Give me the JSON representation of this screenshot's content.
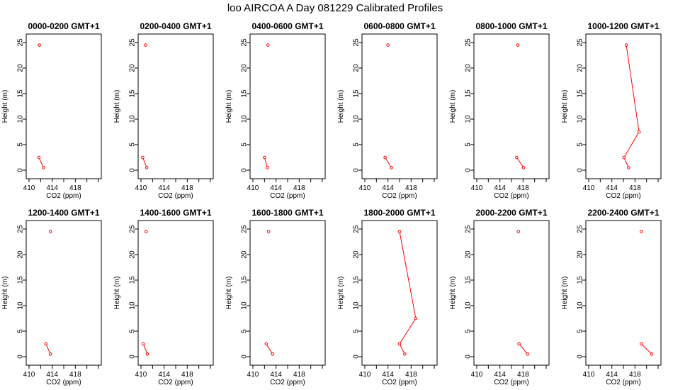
{
  "title": "loo AIRCOA A  Day 081229  Calibrated Profiles",
  "colors": {
    "series": "#ff0000",
    "frame": "#000000",
    "background": "#ffffff"
  },
  "chart_data": [
    {
      "type": "line",
      "title": "0000-0200 GMT+1",
      "xlabel": "CO2 (ppm)",
      "ylabel": "Height (m)",
      "xlim": [
        410,
        422
      ],
      "ylim": [
        0,
        25
      ],
      "xticks": [
        410,
        414,
        418
      ],
      "yticks": [
        0,
        5,
        10,
        15,
        20,
        25
      ],
      "segments": [
        [
          {
            "x": 411.8,
            "y": 24.5
          }
        ],
        [
          {
            "x": 411.7,
            "y": 2.5
          },
          {
            "x": 412.5,
            "y": 0.5
          }
        ]
      ]
    },
    {
      "type": "line",
      "title": "0200-0400 GMT+1",
      "xlabel": "CO2 (ppm)",
      "ylabel": "Height (m)",
      "xlim": [
        410,
        422
      ],
      "ylim": [
        0,
        25
      ],
      "xticks": [
        410,
        414,
        418
      ],
      "yticks": [
        0,
        5,
        10,
        15,
        20,
        25
      ],
      "segments": [
        [
          {
            "x": 410.8,
            "y": 24.5
          }
        ],
        [
          {
            "x": 410.3,
            "y": 2.5
          },
          {
            "x": 411.0,
            "y": 0.5
          }
        ]
      ]
    },
    {
      "type": "line",
      "title": "0400-0600 GMT+1",
      "xlabel": "CO2 (ppm)",
      "ylabel": "Height (m)",
      "xlim": [
        410,
        422
      ],
      "ylim": [
        0,
        25
      ],
      "xticks": [
        410,
        414,
        418
      ],
      "yticks": [
        0,
        5,
        10,
        15,
        20,
        25
      ],
      "segments": [
        [
          {
            "x": 412.6,
            "y": 24.5
          }
        ],
        [
          {
            "x": 412.0,
            "y": 2.5
          },
          {
            "x": 412.5,
            "y": 0.5
          }
        ]
      ]
    },
    {
      "type": "line",
      "title": "0600-0800 GMT+1",
      "xlabel": "CO2 (ppm)",
      "ylabel": "Height (m)",
      "xlim": [
        410,
        422
      ],
      "ylim": [
        0,
        25
      ],
      "xticks": [
        410,
        414,
        418
      ],
      "yticks": [
        0,
        5,
        10,
        15,
        20,
        25
      ],
      "segments": [
        [
          {
            "x": 414.0,
            "y": 24.5
          }
        ],
        [
          {
            "x": 413.5,
            "y": 2.5
          },
          {
            "x": 414.6,
            "y": 0.5
          }
        ]
      ]
    },
    {
      "type": "line",
      "title": "0800-1000 GMT+1",
      "xlabel": "CO2 (ppm)",
      "ylabel": "Height (m)",
      "xlim": [
        410,
        422
      ],
      "ylim": [
        0,
        25
      ],
      "xticks": [
        410,
        414,
        418
      ],
      "yticks": [
        0,
        5,
        10,
        15,
        20,
        25
      ],
      "segments": [
        [
          {
            "x": 417.1,
            "y": 24.5
          }
        ],
        [
          {
            "x": 416.9,
            "y": 2.5
          },
          {
            "x": 418.1,
            "y": 0.5
          }
        ]
      ]
    },
    {
      "type": "line",
      "title": "1000-1200 GMT+1",
      "xlabel": "CO2 (ppm)",
      "ylabel": "Height (m)",
      "xlim": [
        410,
        422
      ],
      "ylim": [
        0,
        25
      ],
      "xticks": [
        410,
        414,
        418
      ],
      "yticks": [
        0,
        5,
        10,
        15,
        20,
        25
      ],
      "segments": [
        [
          {
            "x": 416.5,
            "y": 24.5
          },
          {
            "x": 418.7,
            "y": 7.5
          },
          {
            "x": 416.1,
            "y": 2.5
          },
          {
            "x": 416.9,
            "y": 0.5
          }
        ]
      ]
    },
    {
      "type": "line",
      "title": "1200-1400 GMT+1",
      "xlabel": "CO2 (ppm)",
      "ylabel": "Height (m)",
      "xlim": [
        410,
        422
      ],
      "ylim": [
        0,
        25
      ],
      "xticks": [
        410,
        414,
        418
      ],
      "yticks": [
        0,
        5,
        10,
        15,
        20,
        25
      ],
      "segments": [
        [
          {
            "x": 413.7,
            "y": 24.5
          }
        ],
        [
          {
            "x": 412.9,
            "y": 2.5
          },
          {
            "x": 413.7,
            "y": 0.5
          }
        ]
      ]
    },
    {
      "type": "line",
      "title": "1400-1600 GMT+1",
      "xlabel": "CO2 (ppm)",
      "ylabel": "Height (m)",
      "xlim": [
        410,
        422
      ],
      "ylim": [
        0,
        25
      ],
      "xticks": [
        410,
        414,
        418
      ],
      "yticks": [
        0,
        5,
        10,
        15,
        20,
        25
      ],
      "segments": [
        [
          {
            "x": 410.9,
            "y": 24.5
          }
        ],
        [
          {
            "x": 410.4,
            "y": 2.5
          },
          {
            "x": 411.1,
            "y": 0.5
          }
        ]
      ]
    },
    {
      "type": "line",
      "title": "1600-1800 GMT+1",
      "xlabel": "CO2 (ppm)",
      "ylabel": "Height (m)",
      "xlim": [
        410,
        422
      ],
      "ylim": [
        0,
        25
      ],
      "xticks": [
        410,
        414,
        418
      ],
      "yticks": [
        0,
        5,
        10,
        15,
        20,
        25
      ],
      "segments": [
        [
          {
            "x": 412.7,
            "y": 24.5
          }
        ],
        [
          {
            "x": 412.3,
            "y": 2.5
          },
          {
            "x": 413.4,
            "y": 0.5
          }
        ]
      ]
    },
    {
      "type": "line",
      "title": "1800-2000 GMT+1",
      "xlabel": "CO2 (ppm)",
      "ylabel": "Height (m)",
      "xlim": [
        410,
        422
      ],
      "ylim": [
        0,
        25
      ],
      "xticks": [
        410,
        414,
        418
      ],
      "yticks": [
        0,
        5,
        10,
        15,
        20,
        25
      ],
      "segments": [
        [
          {
            "x": 416.0,
            "y": 24.5
          },
          {
            "x": 418.8,
            "y": 7.5
          },
          {
            "x": 416.0,
            "y": 2.5
          },
          {
            "x": 416.9,
            "y": 0.5
          }
        ]
      ]
    },
    {
      "type": "line",
      "title": "2000-2200 GMT+1",
      "xlabel": "CO2 (ppm)",
      "ylabel": "Height (m)",
      "xlim": [
        410,
        422
      ],
      "ylim": [
        0,
        25
      ],
      "xticks": [
        410,
        414,
        418
      ],
      "yticks": [
        0,
        5,
        10,
        15,
        20,
        25
      ],
      "segments": [
        [
          {
            "x": 417.2,
            "y": 24.5
          }
        ],
        [
          {
            "x": 417.3,
            "y": 2.5
          },
          {
            "x": 418.8,
            "y": 0.5
          }
        ]
      ]
    },
    {
      "type": "line",
      "title": "2200-2400 GMT+1",
      "xlabel": "CO2 (ppm)",
      "ylabel": "Height (m)",
      "xlim": [
        410,
        422
      ],
      "ylim": [
        0,
        25
      ],
      "xticks": [
        410,
        414,
        418
      ],
      "yticks": [
        0,
        5,
        10,
        15,
        20,
        25
      ],
      "segments": [
        [
          {
            "x": 419.1,
            "y": 24.5
          }
        ],
        [
          {
            "x": 419.1,
            "y": 2.5
          },
          {
            "x": 420.9,
            "y": 0.5
          }
        ]
      ]
    }
  ]
}
